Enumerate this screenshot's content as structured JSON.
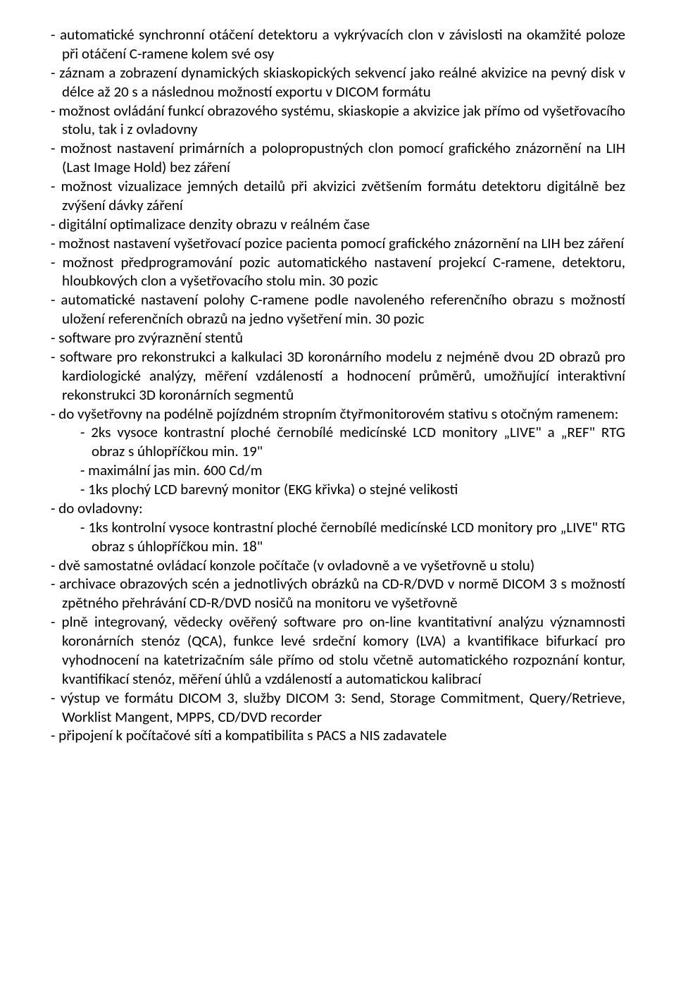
{
  "doc": {
    "font_family": "Calibri",
    "font_size_pt": 15,
    "text_color": "#000000",
    "background_color": "#ffffff",
    "items": [
      {
        "t": "item",
        "text": "- automatické synchronní otáčení detektoru a vykrývacích clon v závislosti na okamžité poloze při otáčení C-ramene kolem své osy"
      },
      {
        "t": "item",
        "text": "- záznam a zobrazení dynamických skiaskopických sekvencí jako reálné akvizice na pevný disk v délce až 20 s a následnou možností exportu v DICOM formátu"
      },
      {
        "t": "item",
        "text": "- možnost ovládání funkcí obrazového systému, skiaskopie a akvizice jak přímo od vyšetřovacího stolu, tak i z ovladovny"
      },
      {
        "t": "item",
        "text": "- možnost nastavení primárních a polopropustných clon pomocí grafického znázornění na LIH (Last Image Hold) bez záření"
      },
      {
        "t": "item",
        "text": "- možnost vizualizace jemných detailů při akvizici zvětšením formátu detektoru digitálně bez zvýšení dávky záření"
      },
      {
        "t": "item",
        "text": "- digitální optimalizace denzity obrazu v reálném čase"
      },
      {
        "t": "item",
        "text": "- možnost nastavení vyšetřovací pozice pacienta pomocí grafického znázornění na LIH bez záření"
      },
      {
        "t": "item",
        "text": "- možnost předprogramování pozic automatického nastavení projekcí C-ramene, detektoru, hloubkových clon a vyšetřovacího stolu min. 30 pozic"
      },
      {
        "t": "item",
        "text": "- automatické nastavení polohy C-ramene podle navoleného referenčního obrazu s možností uložení referenčních obrazů na jedno vyšetření      min. 30 pozic"
      },
      {
        "t": "item",
        "text": "- software pro zvýraznění stentů"
      },
      {
        "t": "item",
        "text": "- software pro rekonstrukci a kalkulaci 3D koronárního modelu z nejméně dvou 2D obrazů pro kardiologické analýzy, měření vzdáleností a hodnocení průměrů, umožňující interaktivní rekonstrukci 3D koronárních segmentů"
      },
      {
        "t": "item",
        "text": "- do vyšetřovny na podélně pojízdném stropním čtyřmonitorovém stativu s otočným ramenem:"
      },
      {
        "t": "sub",
        "text": "- 2ks vysoce kontrastní ploché černobílé medicínské LCD monitory „LIVE\" a „REF\" RTG obraz s úhlopříčkou min. 19\""
      },
      {
        "t": "sub",
        "text": "- maximální jas min. 600 Cd/m"
      },
      {
        "t": "sub",
        "text": "- 1ks plochý LCD barevný monitor (EKG křivka) o stejné velikosti"
      },
      {
        "t": "item",
        "text": "- do ovladovny:"
      },
      {
        "t": "sub",
        "text": "-  1ks kontrolní vysoce kontrastní ploché černobílé medicínské LCD monitory pro „LIVE\" RTG obraz s úhlopříčkou               min. 18\""
      },
      {
        "t": "item",
        "text": "- dvě samostatné ovládací konzole počítače (v ovladovně a ve vyšetřovně u stolu)"
      },
      {
        "t": "item",
        "text": "- archivace obrazových scén a jednotlivých obrázků na CD-R/DVD v normě DICOM 3 s možností zpětného přehrávání CD-R/DVD nosičů na monitoru ve vyšetřovně"
      },
      {
        "t": "item",
        "text": "- plně integrovaný, vědecky ověřený software pro on-line kvantitativní analýzu významnosti koronárních stenóz (QCA), funkce levé srdeční komory (LVA) a kvantifikace bifurkací pro vyhodnocení na katetrizačním sále přímo od stolu včetně automatického rozpoznání kontur, kvantifikací stenóz, měření úhlů a vzdáleností a automatickou kalibrací"
      },
      {
        "t": "item",
        "text": "- výstup ve formátu DICOM 3, služby DICOM 3: Send, Storage Commitment, Query/Retrieve, Worklist Mangent, MPPS, CD/DVD recorder"
      },
      {
        "t": "item",
        "text": "- připojení k počítačové síti a kompatibilita s PACS a NIS zadavatele"
      }
    ]
  }
}
